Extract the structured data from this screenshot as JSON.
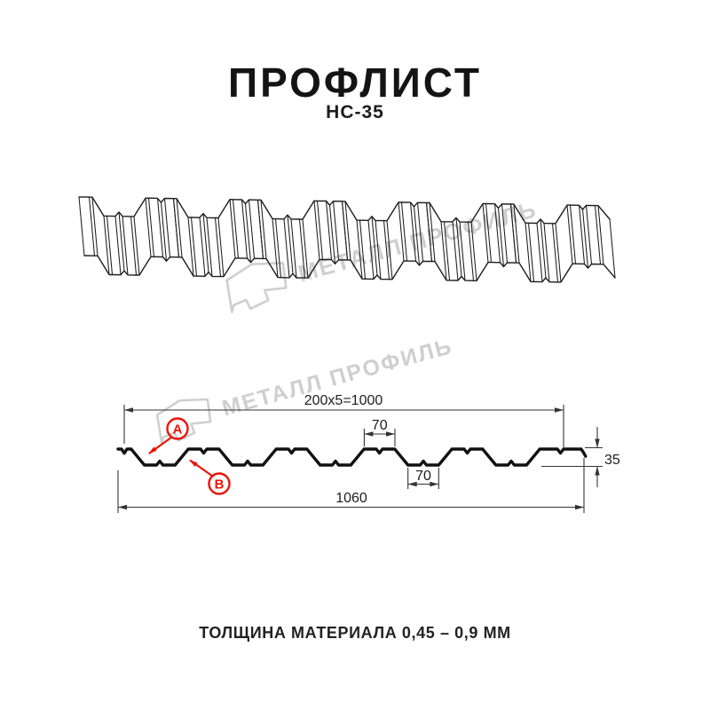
{
  "header": {
    "title": "ПРОФЛИСТ",
    "subtitle": "НС-35"
  },
  "watermark": {
    "text": "МЕТАЛЛ ПРОФИЛЬ"
  },
  "section": {
    "dim_pitch": "200x5=1000",
    "dim_crest_width": "70",
    "dim_valley_width": "70",
    "dim_total_width": "1060",
    "dim_height": "35",
    "label_a": "А",
    "label_b": "В"
  },
  "footer": {
    "thickness_note": "ТОЛЩИНА МАТЕРИАЛА 0,45 – 0,9 ММ"
  },
  "colors": {
    "line": "#1d1d1d",
    "dim_line": "#333333",
    "red": "#e8150a",
    "watermark": "#cfcfcf"
  }
}
